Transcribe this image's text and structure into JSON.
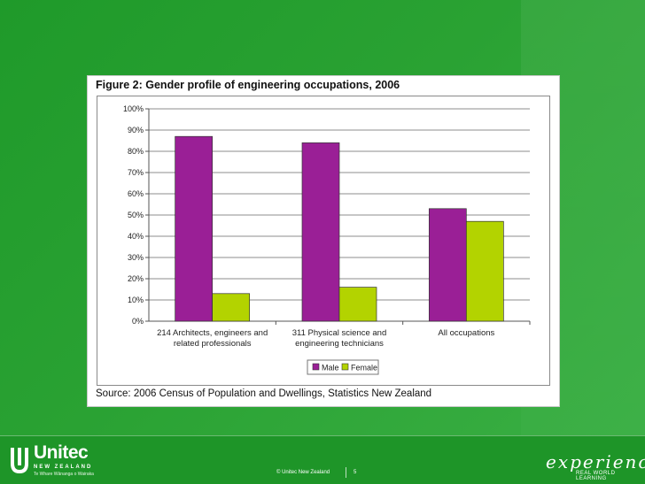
{
  "figure": {
    "title": "Figure 2: Gender profile of engineering occupations, 2006",
    "source": "Source: 2006 Census of Population and Dwellings, Statistics New Zealand"
  },
  "footer": {
    "brand_name": "Unitec",
    "brand_sub": "NEW ZEALAND",
    "brand_tagline": "Te Whare Wānanga o Wairaka",
    "copyright": "© Unitec New Zealand",
    "page_number": "5",
    "experience_word": "experience",
    "experience_sub": "REAL WORLD LEARNING"
  },
  "colors": {
    "male": "#9a1f96",
    "female": "#b3d300",
    "background": "#2aa233"
  },
  "chart_data": {
    "type": "bar",
    "categories": [
      [
        "214 Architects, engineers and",
        "related professionals"
      ],
      [
        "311 Physical science and",
        "engineering technicians"
      ],
      [
        "All occupations"
      ]
    ],
    "series": [
      {
        "name": "Male",
        "values": [
          87,
          84,
          53
        ]
      },
      {
        "name": "Female",
        "values": [
          13,
          16,
          47
        ]
      }
    ],
    "yticks": [
      "0%",
      "10%",
      "20%",
      "30%",
      "40%",
      "50%",
      "60%",
      "70%",
      "80%",
      "90%",
      "100%"
    ],
    "ylim": [
      0,
      100
    ],
    "grid": true,
    "legend_position": "bottom"
  }
}
